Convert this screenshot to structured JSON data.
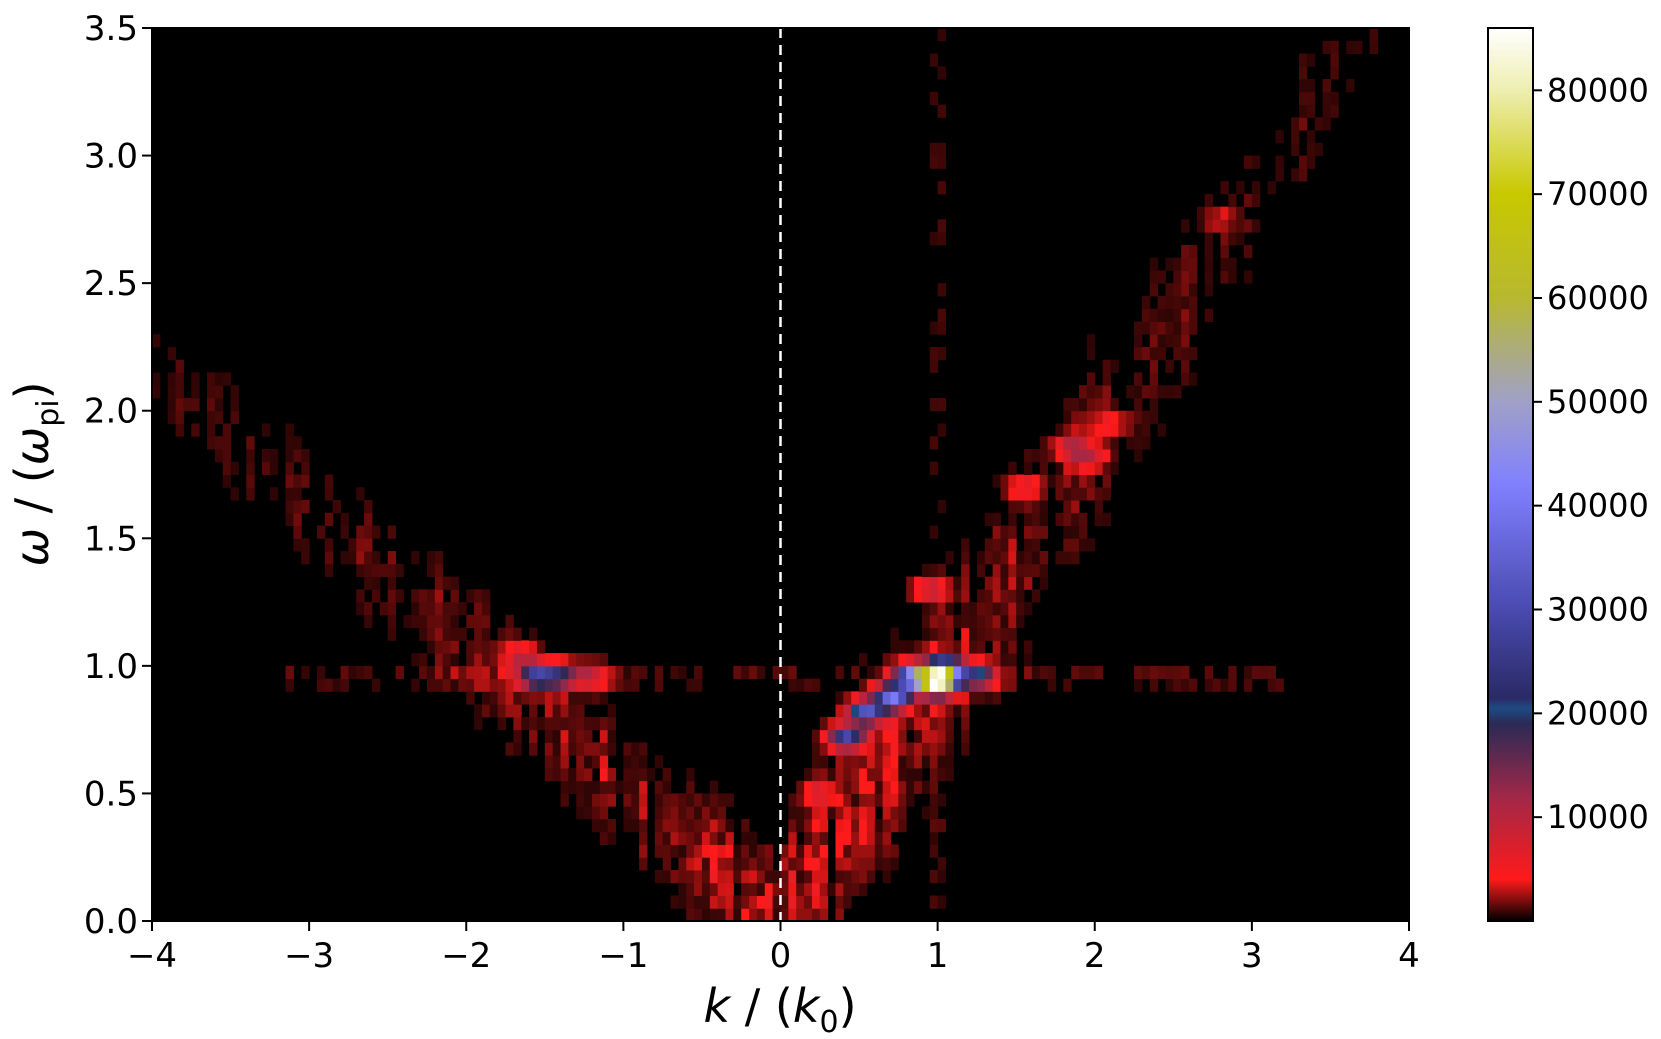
{
  "chart_data": {
    "type": "heatmap",
    "title": "",
    "xlabel": {
      "main": "k",
      "sep": " / (",
      "sym": "k",
      "sub": "0",
      "close": ")"
    },
    "ylabel": {
      "main": "ω",
      "sep": " / (",
      "sym": "ω",
      "sub": "pi",
      "close": ")"
    },
    "xlim": [
      -4,
      4
    ],
    "ylim": [
      0,
      3.5
    ],
    "x_ticks": [
      "−4",
      "−3",
      "−2",
      "−1",
      "0",
      "1",
      "2",
      "3",
      "4"
    ],
    "x_tick_values": [
      -4,
      -3,
      -2,
      -1,
      0,
      1,
      2,
      3,
      4
    ],
    "y_ticks": [
      "0.0",
      "0.5",
      "1.0",
      "1.5",
      "2.0",
      "2.5",
      "3.0",
      "3.5"
    ],
    "y_tick_values": [
      0,
      0.5,
      1.0,
      1.5,
      2.0,
      2.5,
      3.0,
      3.5
    ],
    "grid": false,
    "vertical_line": {
      "x": 0,
      "style": "dashed",
      "color": "#ffffff"
    },
    "colorbar": {
      "min": 0,
      "max": 86000,
      "ticks": [
        "10000",
        "20000",
        "30000",
        "40000",
        "50000",
        "60000",
        "70000",
        "80000"
      ],
      "tick_values": [
        10000,
        20000,
        30000,
        40000,
        50000,
        60000,
        70000,
        80000
      ],
      "colormap_stops": [
        {
          "v": 0,
          "c": "#000000"
        },
        {
          "v": 4000,
          "c": "#ff1a1a"
        },
        {
          "v": 12000,
          "c": "#a02848"
        },
        {
          "v": 19000,
          "c": "#2a2a55"
        },
        {
          "v": 20500,
          "c": "#1e4a82"
        },
        {
          "v": 21500,
          "c": "#2a2a66"
        },
        {
          "v": 30000,
          "c": "#4a4ab0"
        },
        {
          "v": 42000,
          "c": "#8080ff"
        },
        {
          "v": 50000,
          "c": "#a0a0c8"
        },
        {
          "v": 60000,
          "c": "#b8b830"
        },
        {
          "v": 70000,
          "c": "#c8c800"
        },
        {
          "v": 80000,
          "c": "#eeeeb0"
        },
        {
          "v": 86000,
          "c": "#ffffff"
        }
      ]
    },
    "features": [
      {
        "k": 1.0,
        "w": 0.94,
        "value": 84000
      },
      {
        "k": 0.85,
        "w": 0.96,
        "value": 45000
      },
      {
        "k": 0.72,
        "w": 0.88,
        "value": 38000
      },
      {
        "k": 0.55,
        "w": 0.82,
        "value": 32000
      },
      {
        "k": 0.42,
        "w": 0.72,
        "value": 28000
      },
      {
        "k": 1.05,
        "w": 0.99,
        "value": 40000
      },
      {
        "k": 1.25,
        "w": 0.96,
        "value": 22000
      },
      {
        "k": -1.55,
        "w": 0.96,
        "value": 28000
      },
      {
        "k": -1.4,
        "w": 0.96,
        "value": 18000
      },
      {
        "k": -1.2,
        "w": 0.96,
        "value": 9000
      },
      {
        "k": -1.65,
        "w": 1.04,
        "value": 8000
      },
      {
        "k": 1.85,
        "w": 1.86,
        "value": 9000
      },
      {
        "k": 1.95,
        "w": 1.82,
        "value": 8000
      },
      {
        "k": 2.1,
        "w": 1.95,
        "value": 5000
      },
      {
        "k": 1.55,
        "w": 1.7,
        "value": 6000
      },
      {
        "k": 2.8,
        "w": 2.75,
        "value": 3000
      },
      {
        "k": 0.25,
        "w": 0.5,
        "value": 7000
      },
      {
        "k": 0.95,
        "w": 1.3,
        "value": 9000
      }
    ]
  }
}
